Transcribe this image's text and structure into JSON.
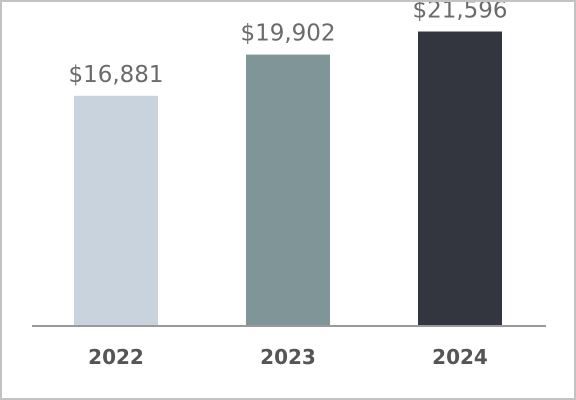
{
  "chart_data": {
    "type": "bar",
    "categories": [
      "2022",
      "2023",
      "2024"
    ],
    "values": [
      16881,
      19902,
      21596
    ],
    "value_labels": [
      "$16,881",
      "$19,902",
      "$21,596"
    ],
    "colors": [
      "#c8d3de",
      "#7f9597",
      "#33363f"
    ],
    "axis_color": "#9a9a9a",
    "title": "",
    "xlabel": "",
    "ylabel": "",
    "ylim": [
      0,
      22000
    ],
    "grid": false,
    "legend": "none"
  }
}
